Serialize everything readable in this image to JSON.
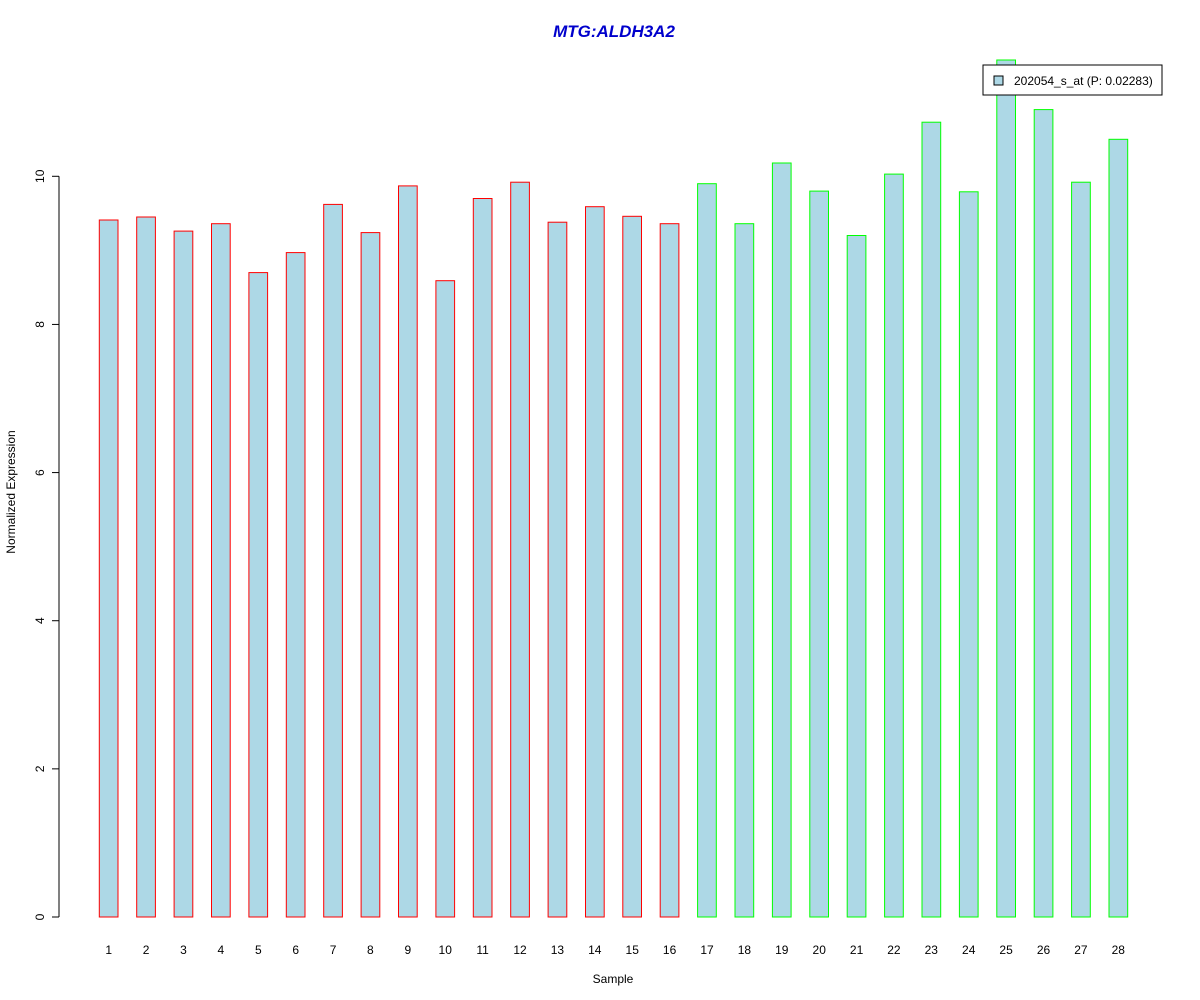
{
  "chart_data": {
    "type": "bar",
    "title": "MTG:ALDH3A2",
    "xlabel": "Sample",
    "ylabel": "Normalized Expression",
    "categories": [
      "1",
      "2",
      "3",
      "4",
      "5",
      "6",
      "7",
      "8",
      "9",
      "10",
      "11",
      "12",
      "13",
      "14",
      "15",
      "16",
      "17",
      "18",
      "19",
      "20",
      "21",
      "22",
      "23",
      "24",
      "25",
      "26",
      "27",
      "28"
    ],
    "series": [
      {
        "name": "202054_s_at (P: 0.02283)",
        "values": [
          9.41,
          9.45,
          9.26,
          9.36,
          8.7,
          8.97,
          9.62,
          9.24,
          9.87,
          8.59,
          9.7,
          9.92,
          9.38,
          9.59,
          9.46,
          9.36,
          9.9,
          9.36,
          10.18,
          9.8,
          9.2,
          10.03,
          10.73,
          9.79,
          11.57,
          10.9,
          9.92,
          10.5
        ]
      }
    ],
    "group_border_colors": [
      "#ff0000",
      "#ff0000",
      "#ff0000",
      "#ff0000",
      "#ff0000",
      "#ff0000",
      "#ff0000",
      "#ff0000",
      "#ff0000",
      "#ff0000",
      "#ff0000",
      "#ff0000",
      "#ff0000",
      "#ff0000",
      "#ff0000",
      "#ff0000",
      "#00ff00",
      "#00ff00",
      "#00ff00",
      "#00ff00",
      "#00ff00",
      "#00ff00",
      "#00ff00",
      "#00ff00",
      "#00ff00",
      "#00ff00",
      "#00ff00",
      "#00ff00"
    ],
    "bar_fill": "#add8e6",
    "title_color": "#0000cc",
    "yticks": [
      0,
      2,
      4,
      6,
      8,
      10
    ],
    "ylim": [
      0,
      11.57
    ],
    "legend_position": "top-right",
    "grid": false
  }
}
